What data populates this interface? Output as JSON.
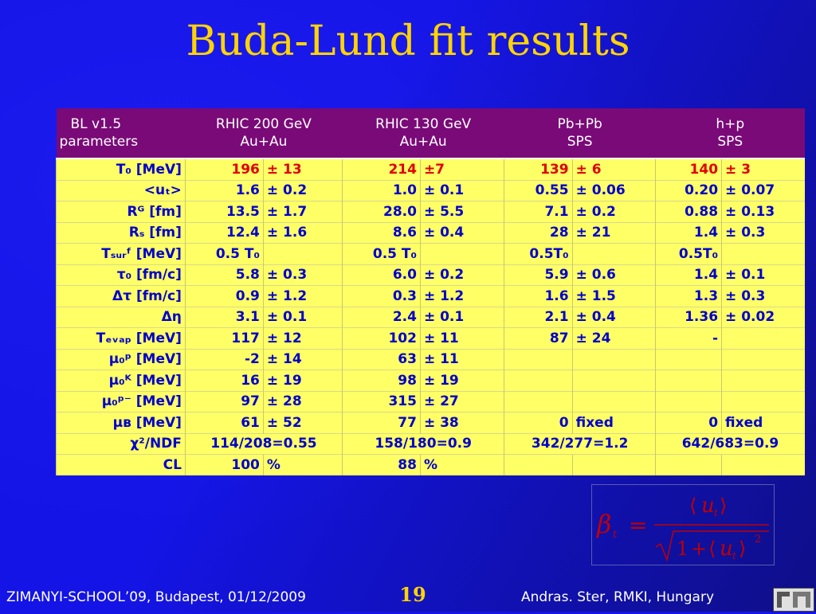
{
  "title": "Buda-Lund fit results",
  "table": {
    "headers": [
      {
        "line1": "BL v1.5",
        "line2": "parameters"
      },
      {
        "line1": "RHIC 200 GeV",
        "line2": "Au+Au"
      },
      {
        "line1": "RHIC 130 GeV",
        "line2": "Au+Au"
      },
      {
        "line1": "Pb+Pb",
        "line2": "SPS"
      },
      {
        "line1": "h+p",
        "line2": "SPS"
      }
    ],
    "rows": [
      {
        "label": "T₀ [MeV]",
        "cells": [
          [
            "196",
            "± 13"
          ],
          [
            "214",
            "±7"
          ],
          [
            "139",
            "± 6"
          ],
          [
            "140",
            "± 3"
          ]
        ]
      },
      {
        "label": "<uₜ>",
        "cells": [
          [
            "1.6",
            "± 0.2"
          ],
          [
            "1.0",
            "± 0.1"
          ],
          [
            "0.55",
            "± 0.06"
          ],
          [
            "0.20",
            "± 0.07"
          ]
        ]
      },
      {
        "label": "Rᴳ [fm]",
        "cells": [
          [
            "13.5",
            "± 1.7"
          ],
          [
            "28.0",
            "± 5.5"
          ],
          [
            "7.1",
            "± 0.2"
          ],
          [
            "0.88",
            "± 0.13"
          ]
        ]
      },
      {
        "label": "Rₛ [fm]",
        "cells": [
          [
            "12.4",
            "± 1.6"
          ],
          [
            "8.6",
            "± 0.4"
          ],
          [
            "28",
            "± 21"
          ],
          [
            "1.4",
            "± 0.3"
          ]
        ]
      },
      {
        "label": "Tₛᵤᵣᶠ [MeV]",
        "cells": [
          [
            "0.5 T₀",
            ""
          ],
          [
            "0.5 T₀",
            ""
          ],
          [
            "0.5T₀",
            ""
          ],
          [
            "0.5T₀",
            ""
          ]
        ]
      },
      {
        "label": "τ₀ [fm/c]",
        "cells": [
          [
            "5.8",
            "± 0.3"
          ],
          [
            "6.0",
            "± 0.2"
          ],
          [
            "5.9",
            "± 0.6"
          ],
          [
            "1.4",
            "± 0.1"
          ]
        ]
      },
      {
        "label": "Δτ [fm/c]",
        "cells": [
          [
            "0.9",
            "± 1.2"
          ],
          [
            "0.3",
            "± 1.2"
          ],
          [
            "1.6",
            "± 1.5"
          ],
          [
            "1.3",
            "± 0.3"
          ]
        ]
      },
      {
        "label": "Δη",
        "cells": [
          [
            "3.1",
            "± 0.1"
          ],
          [
            "2.4",
            "± 0.1"
          ],
          [
            "2.1",
            "± 0.4"
          ],
          [
            "1.36",
            "± 0.02"
          ]
        ]
      },
      {
        "label": "Tₑᵥₐₚ [MeV]",
        "cells": [
          [
            "117",
            "± 12"
          ],
          [
            "102",
            "± 11"
          ],
          [
            "87",
            "± 24"
          ],
          [
            "-",
            ""
          ]
        ]
      },
      {
        "label": "μ₀ᵖ [MeV]",
        "cells": [
          [
            "-2",
            "± 14"
          ],
          [
            "63",
            "± 11"
          ],
          [
            "",
            ""
          ],
          [
            "",
            ""
          ]
        ]
      },
      {
        "label": "μ₀ᴷ [MeV]",
        "cells": [
          [
            "16",
            "± 19"
          ],
          [
            "98",
            "± 19"
          ],
          [
            "",
            ""
          ],
          [
            "",
            ""
          ]
        ]
      },
      {
        "label": "μ₀ᵖ⁻ [MeV]",
        "cells": [
          [
            "97",
            "± 28"
          ],
          [
            "315",
            "± 27"
          ],
          [
            "",
            ""
          ],
          [
            "",
            ""
          ]
        ]
      },
      {
        "label": "μʙ [MeV]",
        "cells": [
          [
            "61",
            "± 52"
          ],
          [
            "77",
            "± 38"
          ],
          [
            "0",
            "fixed"
          ],
          [
            "0",
            "fixed"
          ]
        ]
      },
      {
        "label": "χ²/NDF",
        "span": true,
        "cells": [
          "114/208=0.55",
          "158/180=0.9",
          "342/277=1.2",
          "642/683=0.9"
        ]
      },
      {
        "label": "CL",
        "cells": [
          [
            "100",
            "%"
          ],
          [
            "88",
            "%"
          ],
          [
            "",
            ""
          ],
          [
            "",
            ""
          ]
        ]
      }
    ]
  },
  "footer": {
    "left": "ZIMANYI-SCHOOL’09, Budapest, 01/12/2009",
    "page": "19",
    "right": "Andras. Ster,  RMKI, Hungary"
  },
  "colors": {
    "background": "#1414e6",
    "title": "#ffd400",
    "header_bg": "#7a0a78",
    "cell_bg": "#ffff66",
    "cell_text": "#0000cc",
    "highlight": "#e00000"
  }
}
